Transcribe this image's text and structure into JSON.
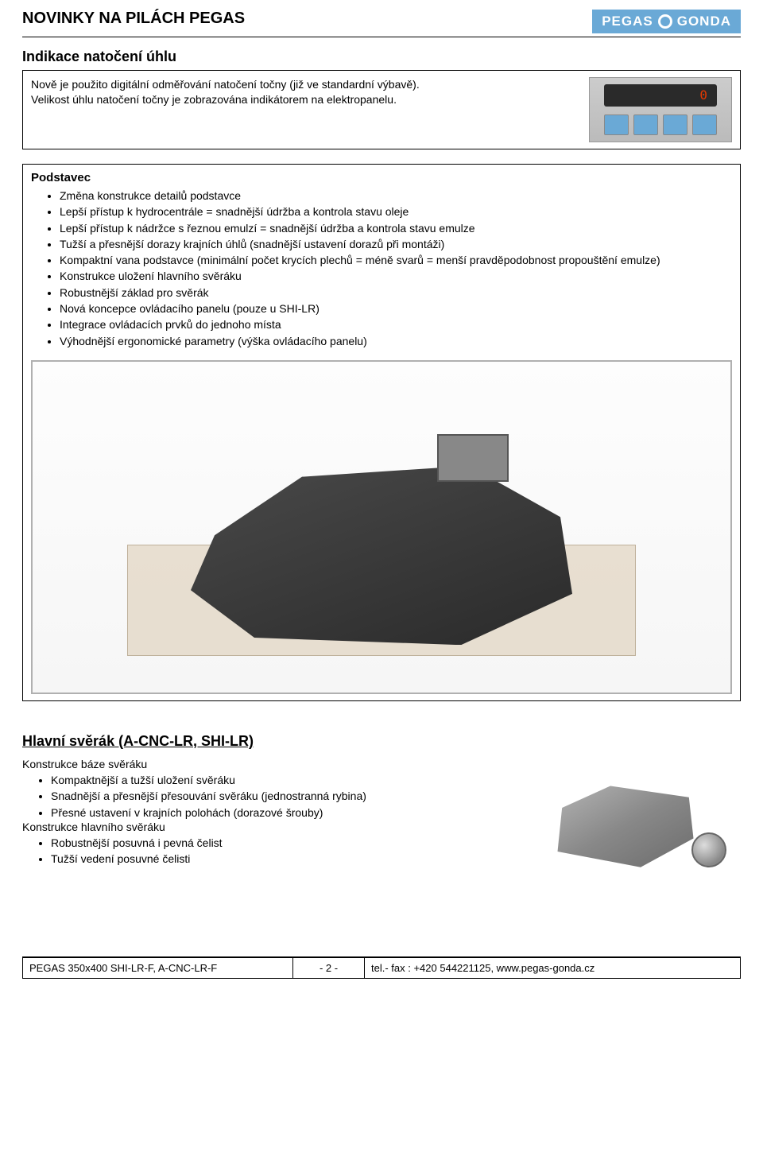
{
  "header": {
    "title": "NOVINKY NA PILÁCH PEGAS",
    "brand_left": "PEGAS",
    "brand_right": "GONDA"
  },
  "section1": {
    "heading": "Indikace natočení úhlu",
    "text_line1": "Nově je použito digitální odměřování natočení točny (již ve standardní výbavě).",
    "text_line2": "Velikost úhlu natočení točny je zobrazována indikátorem na elektropanelu.",
    "display_value": "0"
  },
  "podstavec": {
    "heading": "Podstavec",
    "bullets": [
      "Změna konstrukce detailů podstavce",
      "Lepší přístup k hydrocentrále = snadnější údržba a kontrola stavu oleje",
      "Lepší přístup k nádržce s řeznou emulzí = snadnější údržba a kontrola stavu emulze",
      "Tužší a přesnější dorazy krajních úhlů (snadnější ustavení dorazů při montáži)",
      "Kompaktní vana podstavce (minimální počet krycích plechů = méně svarů = menší pravděpodobnost propouštění emulze)",
      "Konstrukce uložení hlavního svěráku",
      "Robustnější základ pro svěrák",
      "Nová koncepce ovládacího panelu (pouze u SHI-LR)",
      "Integrace ovládacích prvků do jednoho místa",
      "Výhodnější ergonomické parametry (výška ovládacího panelu)"
    ]
  },
  "sverak": {
    "heading": "Hlavní svěrák (A-CNC-LR, SHI-LR)",
    "group1_title": "Konstrukce báze svěráku",
    "group1_bullets": [
      "Kompaktnější a tužší uložení svěráku",
      "Snadnější a přesnější přesouvání svěráku (jednostranná rybina)",
      "Přesné ustavení v krajních polohách (dorazové šrouby)"
    ],
    "group2_title": "Konstrukce hlavního svěráku",
    "group2_bullets": [
      "Robustnější posuvná i pevná čelist",
      "Tužší vedení posuvné čelisti"
    ]
  },
  "footer": {
    "left": "PEGAS 350x400 SHI-LR-F, A-CNC-LR-F",
    "page": "- 2 -",
    "right": "tel.- fax : +420 544221125, www.pegas-gonda.cz"
  }
}
